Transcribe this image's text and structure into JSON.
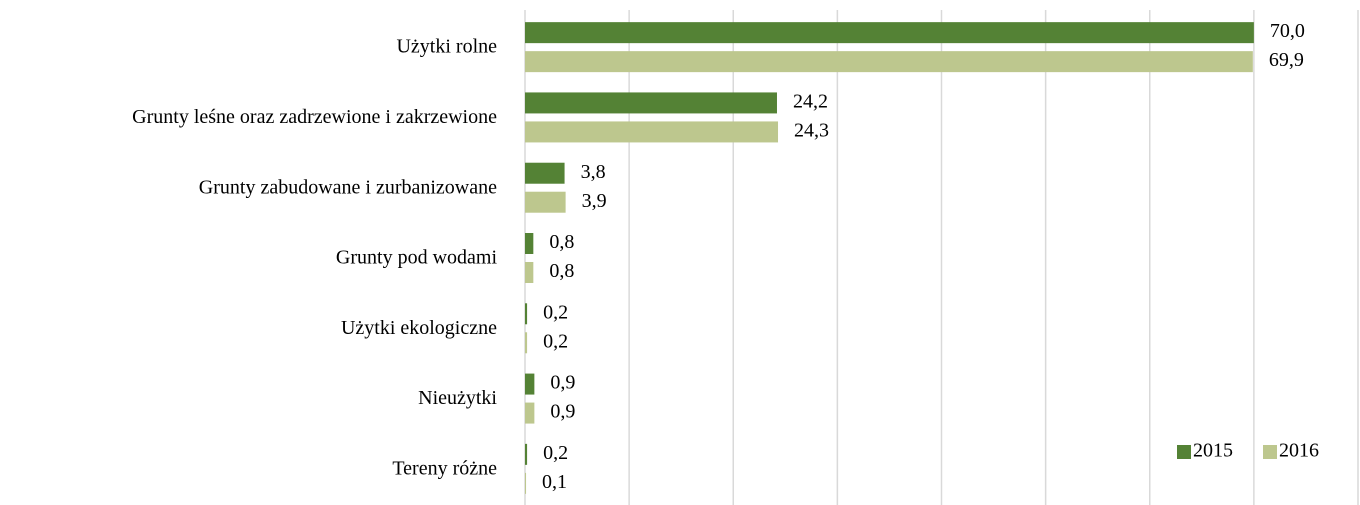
{
  "chart_data": {
    "type": "bar",
    "orientation": "horizontal",
    "categories": [
      "Użytki rolne",
      "Grunty leśne oraz zadrzewione i zakrzewione",
      "Grunty zabudowane i zurbanizowane",
      "Grunty pod wodami",
      "Użytki ekologiczne",
      "Nieużytki",
      "Tereny różne"
    ],
    "series": [
      {
        "name": "2015",
        "color": "#548235",
        "values": [
          70.0,
          24.2,
          3.8,
          0.8,
          0.2,
          0.9,
          0.2
        ],
        "value_labels": [
          "70,0",
          "24,2",
          "3,8",
          "0,8",
          "0,2",
          "0,9",
          "0,2"
        ]
      },
      {
        "name": "2016",
        "color": "#bdc78e",
        "values": [
          69.9,
          24.3,
          3.9,
          0.8,
          0.2,
          0.9,
          0.1
        ],
        "value_labels": [
          "69,9",
          "24,3",
          "3,9",
          "0,8",
          "0,2",
          "0,9",
          "0,1"
        ]
      }
    ],
    "xlim": [
      0,
      80
    ],
    "xticks": [
      0,
      10,
      20,
      30,
      40,
      50,
      60,
      70,
      80
    ],
    "grid": true,
    "legend": "lower right"
  }
}
